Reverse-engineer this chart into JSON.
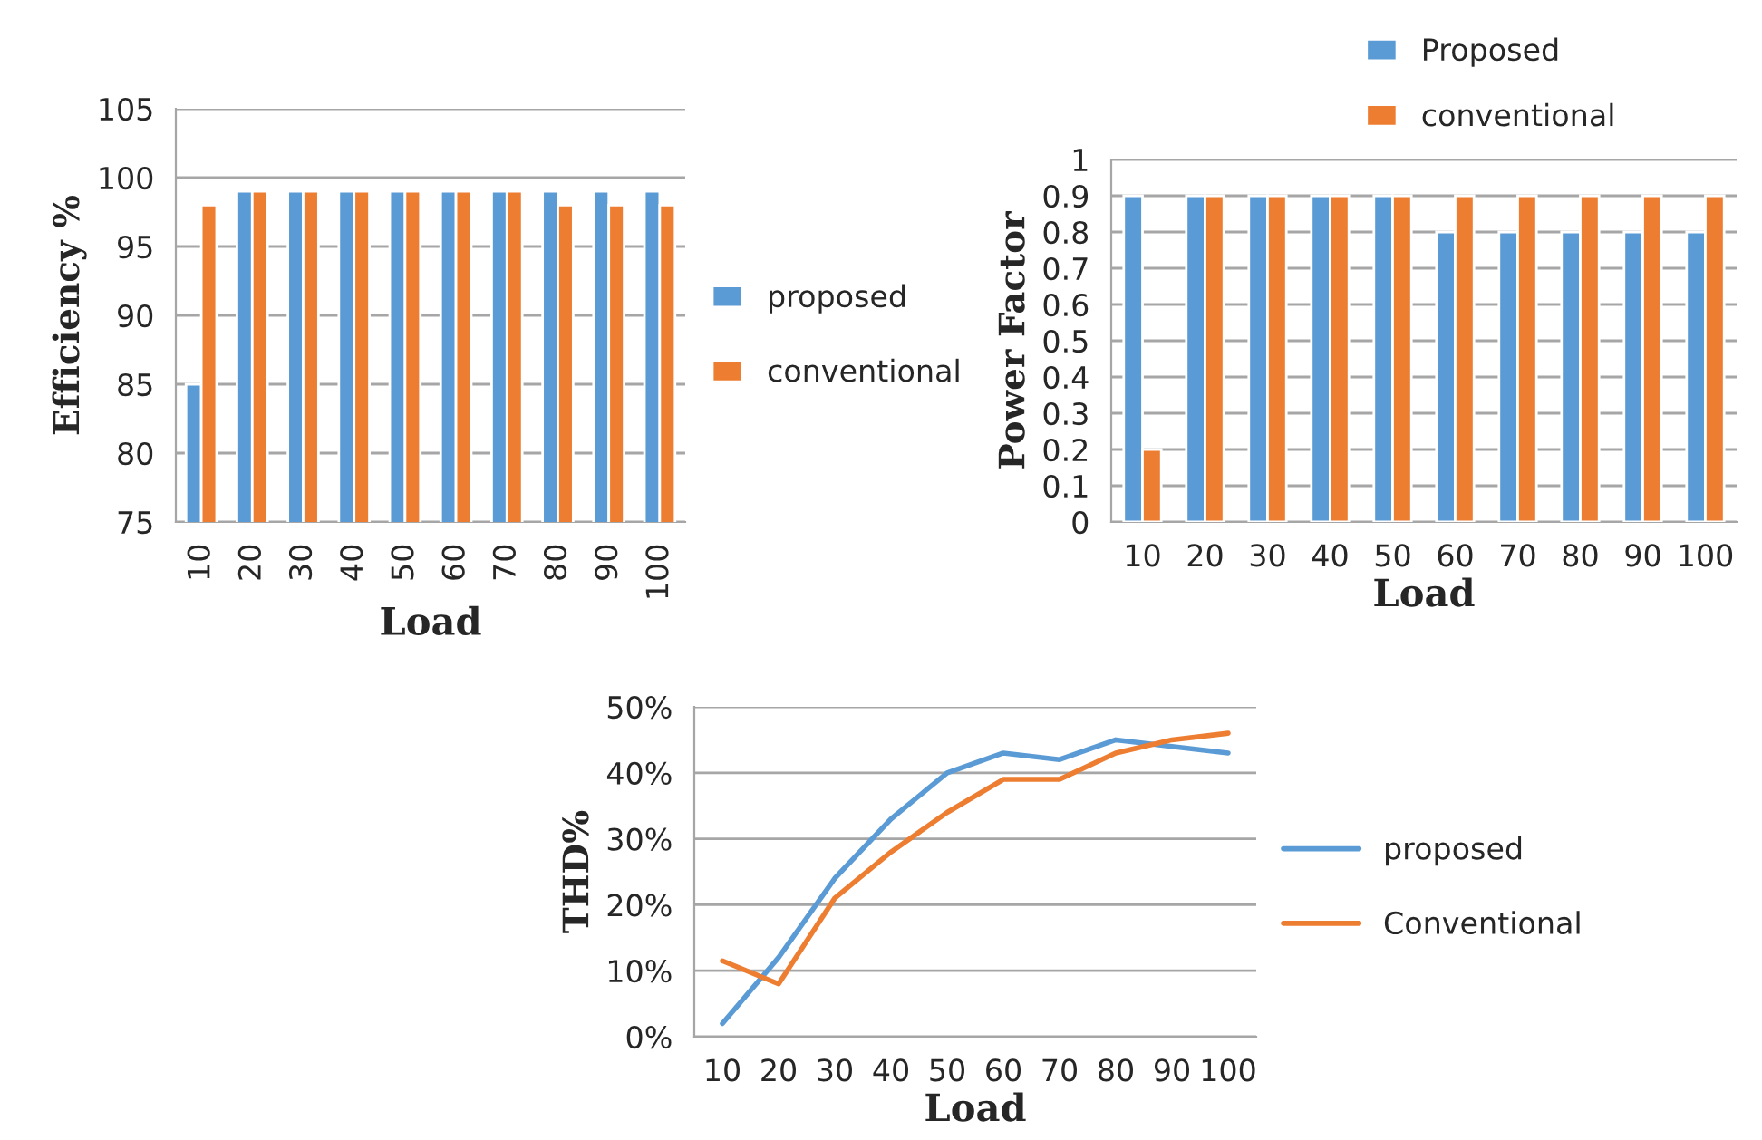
{
  "chart_data": [
    {
      "type": "bar",
      "xlabel": "Load",
      "ylabel": "Efficiency %",
      "categories": [
        "10",
        "20",
        "30",
        "40",
        "50",
        "60",
        "70",
        "80",
        "90",
        "100"
      ],
      "series": [
        {
          "name": "proposed",
          "color": "#5b9bd5",
          "values": [
            85,
            99,
            99,
            99,
            99,
            99,
            99,
            99,
            99,
            99
          ]
        },
        {
          "name": "conventional",
          "color": "#ed7d31",
          "values": [
            98,
            99,
            99,
            99,
            99,
            99,
            99,
            98,
            98,
            98
          ]
        }
      ],
      "ylim": [
        75,
        105
      ],
      "yticks": [
        75,
        80,
        85,
        90,
        95,
        100,
        105
      ],
      "grid": "y",
      "legend": "right"
    },
    {
      "type": "bar",
      "xlabel": "Load",
      "ylabel": "Power Factor",
      "categories": [
        "10",
        "20",
        "30",
        "40",
        "50",
        "60",
        "70",
        "80",
        "90",
        "100"
      ],
      "series": [
        {
          "name": "Proposed",
          "color": "#5b9bd5",
          "values": [
            0.9,
            0.9,
            0.9,
            0.9,
            0.9,
            0.8,
            0.8,
            0.8,
            0.8,
            0.8
          ]
        },
        {
          "name": "conventional",
          "color": "#ed7d31",
          "values": [
            0.2,
            0.9,
            0.9,
            0.9,
            0.9,
            0.9,
            0.9,
            0.9,
            0.9,
            0.9
          ]
        }
      ],
      "ylim": [
        0,
        1
      ],
      "yticks": [
        0,
        0.1,
        0.2,
        0.3,
        0.4,
        0.5,
        0.6,
        0.7,
        0.8,
        0.9,
        1
      ],
      "grid": "y",
      "legend": "top right"
    },
    {
      "type": "line",
      "xlabel": "Load",
      "ylabel": "THD%",
      "categories": [
        "10",
        "20",
        "30",
        "40",
        "50",
        "60",
        "70",
        "80",
        "90",
        "100"
      ],
      "series": [
        {
          "name": "proposed",
          "color": "#5b9bd5",
          "values": [
            2,
            12,
            24,
            33,
            40,
            43,
            42,
            45,
            44,
            43
          ]
        },
        {
          "name": "Conventional",
          "color": "#ed7d31",
          "values": [
            11.5,
            8,
            21,
            28,
            34,
            39,
            39,
            43,
            45,
            46
          ]
        }
      ],
      "ylim": [
        0,
        50
      ],
      "yticks": [
        {
          "value": 0,
          "label": "0%"
        },
        {
          "value": 10,
          "label": "10%"
        },
        {
          "value": 20,
          "label": "20%"
        },
        {
          "value": 30,
          "label": "30%"
        },
        {
          "value": 40,
          "label": "40%"
        },
        {
          "value": 50,
          "label": "50%"
        }
      ],
      "grid": "y",
      "legend": "right"
    }
  ]
}
